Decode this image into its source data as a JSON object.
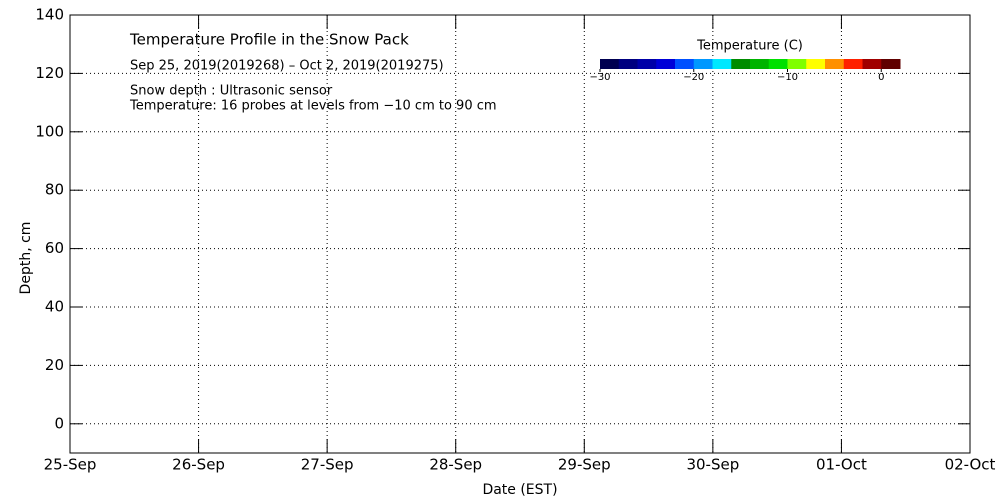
{
  "chart_data": {
    "type": "line",
    "title": "Temperature Profile in the Snow Pack",
    "subtitle": "Sep 25, 2019(2019268) – Oct  2, 2019(2019275)",
    "annotations": [
      "Snow depth : Ultrasonic sensor",
      "Temperature: 16 probes at levels from −10 cm to 90 cm"
    ],
    "x_label": "Date (EST)",
    "y_label": "Depth, cm",
    "categories": [
      "25-Sep",
      "26-Sep",
      "27-Sep",
      "28-Sep",
      "29-Sep",
      "30-Sep",
      "01-Oct",
      "02-Oct"
    ],
    "series": [],
    "ylim": [
      -10,
      140
    ],
    "yticks": [
      0,
      20,
      40,
      60,
      80,
      100,
      120,
      140
    ],
    "grid": true,
    "colorbar": {
      "label": "Temperature (C)",
      "lim": [
        -30,
        2
      ],
      "ticks": [
        {
          "value": -30,
          "label": "−30"
        },
        {
          "value": -20,
          "label": "−20"
        },
        {
          "value": -10,
          "label": "−10"
        },
        0
      ],
      "colors": [
        "#000050",
        "#000080",
        "#0000a8",
        "#0000d8",
        "#0050ff",
        "#0098ff",
        "#00e8ff",
        "#008c00",
        "#00b400",
        "#00e000",
        "#80ff00",
        "#ffff00",
        "#ff9000",
        "#ff2000",
        "#a00000",
        "#600000"
      ]
    }
  }
}
